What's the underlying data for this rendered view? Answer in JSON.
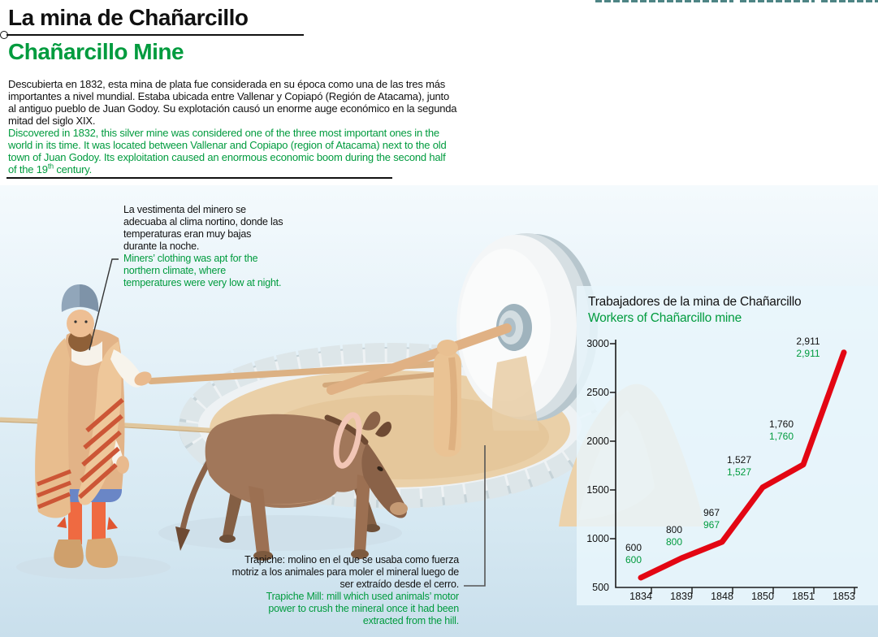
{
  "header": {
    "title_es": "La mina de Chañarcillo",
    "title_en": "Chañarcillo Mine",
    "intro_es": "Descubierta en 1832, esta mina de plata fue considerada en su época como una de las tres más\nimportantes a nivel mundial. Estaba ubicada entre Vallenar y Copiapó (Región de Atacama), junto\nal antiguo pueblo de Juan Godoy. Su explotación causó un enorme auge económico en la segunda\nmitad del siglo XIX.",
    "intro_en_lines": "Discovered in 1832, this silver mine was considered one of the three most important ones in the\nworld in its time. It was located between Vallenar and Copiapo (region of Atacama) next to the old\ntown of Juan Godoy. Its exploitation caused an enormous economic boom during the second half",
    "intro_en_tail_pre": "of the 19",
    "intro_en_tail_sup": "th",
    "intro_en_tail_post": " century."
  },
  "annotations": {
    "miner_es": "La vestimenta del minero se\nadecuaba al clima nortino, donde las\ntemperaturas eran muy bajas\ndurante la noche.",
    "miner_en": "Miners’ clothing was apt for the\nnorthern climate, where\ntemperatures were very low at night.",
    "trapiche_es": "Trapiche: molino en el que se usaba como fuerza\nmotriz a los animales para moler el mineral luego de\nser extraído desde el cerro.",
    "trapiche_en": "Trapiche Mill: mill which used animals’ motor\npower to crush the mineral once it had been\nextracted from the hill."
  },
  "chart_data": {
    "type": "line",
    "title_es": "Trabajadores de la mina de Chañarcillo",
    "title_en": "Workers of Chañarcillo mine",
    "categories": [
      "1834",
      "1839",
      "1848",
      "1850",
      "1851",
      "1853"
    ],
    "values": [
      600,
      800,
      967,
      1527,
      1760,
      2911
    ],
    "display_values": [
      "600",
      "800",
      "967",
      "1,527",
      "1,760",
      "2,911"
    ],
    "y_ticks_desc": [
      "3000",
      "2500",
      "2000",
      "1500",
      "1000",
      "500"
    ],
    "ylim": [
      500,
      3000
    ],
    "grid": "off",
    "legend_position": "none",
    "line_color": "#e30613",
    "value_label_colors": [
      "#111111",
      "#009b3e"
    ]
  },
  "colors": {
    "accent_green": "#009b3e",
    "line_red": "#e30613",
    "top_dash_teal": "#2e6f6f",
    "panel_blue": "#e9f5fb"
  }
}
